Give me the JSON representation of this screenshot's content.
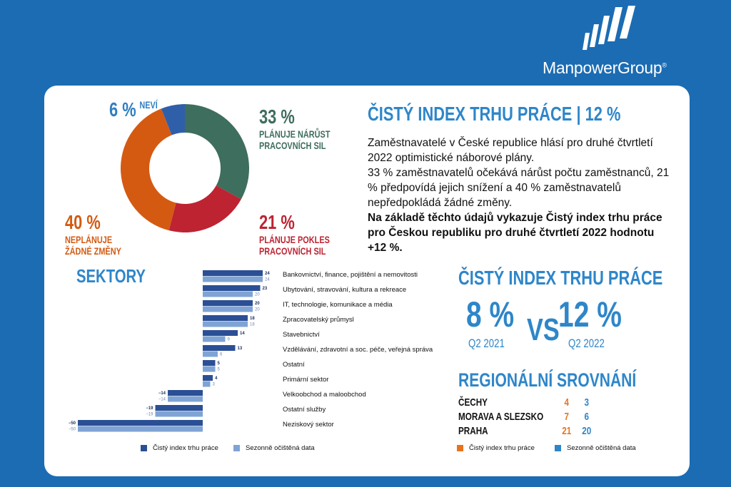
{
  "brand": {
    "name": "ManpowerGroup",
    "mark": "®",
    "bg_color": "#1C6CB3"
  },
  "donut": {
    "slices": [
      {
        "key": "growth",
        "value": 33,
        "color": "#3E6E5D",
        "pct": "33 %",
        "label_1": "PLÁNUJE NÁRŮST",
        "label_2": "PRACOVNÍCH SIL"
      },
      {
        "key": "decline",
        "value": 21,
        "color": "#BE2332",
        "pct": "21 %",
        "label_1": "PLÁNUJE POKLES",
        "label_2": "PRACOVNÍCH SIL"
      },
      {
        "key": "nochange",
        "value": 40,
        "color": "#D45A12",
        "pct": "40 %",
        "label_1": "NEPLÁNUJE",
        "label_2": "ŽÁDNÉ ZMĚNY"
      },
      {
        "key": "unknown",
        "value": 6,
        "color": "#2F5FA8",
        "pct": "6 %",
        "label_1": "NEVÍ",
        "label_2": ""
      }
    ]
  },
  "headline": "ČISTÝ INDEX TRHU PRÁCE | 12 %",
  "body": {
    "p1": "Zaměstnavatelé v České republice hlásí pro druhé čtvrtletí 2022 optimistické náborové plány.",
    "p2": "33 % zaměstnavatelů očekává nárůst počtu zaměstnanců, 21 % předpovídá jejich snížení a 40 % zaměstnavatelů nepředpokládá žádné změny.",
    "p3": "Na základě těchto údajů vykazuje Čistý index trhu práce pro Českou republiku pro druhé čtvrtletí 2022 hodnotu +12 %."
  },
  "sectors_title": "SEKTORY",
  "chart_data": {
    "type": "bar",
    "orientation": "horizontal",
    "categories": [
      "Bankovnictví, finance, pojištění a nemovitosti",
      "Ubytování, stravování, kultura a rekreace",
      "IT, technologie, komunikace a média",
      "Zpracovatelský průmysl",
      "Stavebnictví",
      "Vzdělávání, zdravotní a soc. péče, veřejná správa",
      "Ostatní",
      "Primární sektor",
      "Velkoobchod a maloobchod",
      "Ostatní služby",
      "Neziskový sektor"
    ],
    "series": [
      {
        "name": "Čistý index trhu práce",
        "color": "#2B4F95",
        "values": [
          24,
          23,
          20,
          18,
          14,
          13,
          5,
          4,
          -14,
          -19,
          -50
        ]
      },
      {
        "name": "Sezonně očištěná data",
        "color": "#7FA3D4",
        "values": [
          24,
          20,
          20,
          18,
          9,
          6,
          5,
          3,
          -14,
          -19,
          -50
        ]
      }
    ],
    "value_labels": [
      [
        "24",
        "23",
        "20",
        "18",
        "14",
        "13",
        "5",
        "4",
        "−14",
        "−19",
        "−50"
      ],
      [
        "24",
        "20",
        "20",
        "18",
        "9",
        "6",
        "5",
        "3",
        "−14",
        "−19",
        "−50"
      ]
    ],
    "xlim": [
      -50,
      24
    ],
    "legend": "bottom"
  },
  "index": {
    "title": "ČISTÝ INDEX TRHU PRÁCE",
    "left_value": "8 %",
    "left_period": "Q2 2021",
    "vs": "VS",
    "right_value": "12 %",
    "right_period": "Q2 2022"
  },
  "regional": {
    "title": "REGIONÁLNÍ SROVNÁNÍ",
    "rows": [
      {
        "name": "ČECHY",
        "v1": "4",
        "v2": "3"
      },
      {
        "name": "MORAVA A SLEZSKO",
        "v1": "7",
        "v2": "6"
      },
      {
        "name": "PRAHA",
        "v1": "21",
        "v2": "20"
      }
    ],
    "legend": [
      {
        "label": "Čistý index trhu práce",
        "color": "#E8731E"
      },
      {
        "label": "Sezonně očištěná data",
        "color": "#2E86C9"
      }
    ]
  }
}
